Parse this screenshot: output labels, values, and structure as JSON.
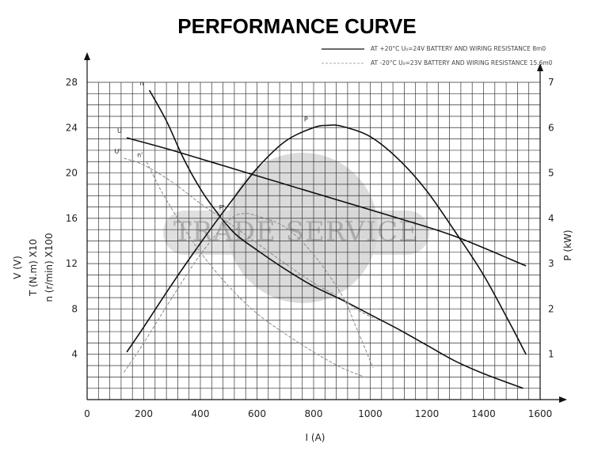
{
  "chart_data": {
    "type": "line",
    "title": "PERFORMANCE CURVE",
    "xlabel": "I  (A)",
    "ylabel_left": [
      "V  (V)",
      "T (N.m) X10",
      "n (r/min) X100"
    ],
    "ylabel_right": "P  (kW)",
    "xlim": [
      0,
      1600
    ],
    "ylim_left": [
      0,
      28
    ],
    "ylim_right": [
      0,
      7
    ],
    "x_ticks": [
      0,
      200,
      400,
      600,
      800,
      1000,
      1200,
      1400,
      1600
    ],
    "y_ticks_left": [
      4,
      8,
      12,
      16,
      20,
      24,
      28
    ],
    "y_ticks_right": [
      1,
      2,
      3,
      4,
      5,
      6,
      7
    ],
    "grid": true,
    "legend": [
      {
        "text": "AT +20°C  U₀=24V   BATTERY AND WIRING RESISTANCE 8m0",
        "style": "solid"
      },
      {
        "text": "AT -20°C  U₀=23V   BATTERY AND WIRING RESISTANCE 15.6m0",
        "style": "dashed"
      }
    ],
    "watermark": "TRADE SERVICE",
    "series": [
      {
        "name": "U",
        "style": "solid",
        "axis": "left",
        "points": [
          [
            140,
            23.1
          ],
          [
            300,
            22.0
          ],
          [
            500,
            20.5
          ],
          [
            700,
            19.0
          ],
          [
            900,
            17.5
          ],
          [
            1100,
            16.0
          ],
          [
            1300,
            14.4
          ],
          [
            1550,
            11.8
          ]
        ]
      },
      {
        "name": "n",
        "style": "solid",
        "axis": "left",
        "points": [
          [
            220,
            27.3
          ],
          [
            280,
            24.6
          ],
          [
            340,
            21.3
          ],
          [
            400,
            18.6
          ],
          [
            450,
            16.8
          ],
          [
            520,
            14.7
          ],
          [
            600,
            13.2
          ],
          [
            700,
            11.5
          ],
          [
            800,
            10.0
          ],
          [
            900,
            8.8
          ],
          [
            1000,
            7.5
          ],
          [
            1100,
            6.2
          ],
          [
            1200,
            4.8
          ],
          [
            1300,
            3.4
          ],
          [
            1400,
            2.3
          ],
          [
            1540,
            1.0
          ]
        ]
      },
      {
        "name": "P",
        "style": "solid",
        "axis": "right",
        "points": [
          [
            140,
            1.05
          ],
          [
            200,
            1.6
          ],
          [
            300,
            2.55
          ],
          [
            400,
            3.45
          ],
          [
            500,
            4.3
          ],
          [
            600,
            5.1
          ],
          [
            700,
            5.7
          ],
          [
            800,
            6.0
          ],
          [
            850,
            6.05
          ],
          [
            900,
            6.03
          ],
          [
            1000,
            5.8
          ],
          [
            1100,
            5.3
          ],
          [
            1200,
            4.6
          ],
          [
            1300,
            3.7
          ],
          [
            1400,
            2.75
          ],
          [
            1500,
            1.6
          ],
          [
            1550,
            1.0
          ]
        ]
      },
      {
        "name": "U'",
        "style": "dashed",
        "axis": "left",
        "points": [
          [
            130,
            21.3
          ],
          [
            200,
            20.7
          ],
          [
            300,
            19.2
          ],
          [
            400,
            17.3
          ],
          [
            500,
            15.6
          ],
          [
            600,
            13.8
          ],
          [
            700,
            12.0
          ],
          [
            800,
            10.3
          ],
          [
            900,
            8.9
          ],
          [
            950,
            8.0
          ],
          [
            1010,
            7.2
          ]
        ]
      },
      {
        "name": "n'",
        "style": "dashed",
        "axis": "left",
        "points": [
          [
            210,
            21.0
          ],
          [
            260,
            18.5
          ],
          [
            320,
            16.0
          ],
          [
            400,
            13.0
          ],
          [
            500,
            10.0
          ],
          [
            600,
            7.6
          ],
          [
            700,
            5.8
          ],
          [
            800,
            4.2
          ],
          [
            900,
            2.8
          ],
          [
            980,
            2.0
          ]
        ]
      },
      {
        "name": "P'",
        "style": "dashed",
        "axis": "right",
        "points": [
          [
            130,
            0.6
          ],
          [
            200,
            1.25
          ],
          [
            300,
            2.25
          ],
          [
            400,
            3.2
          ],
          [
            500,
            3.95
          ],
          [
            550,
            4.1
          ],
          [
            600,
            4.05
          ],
          [
            700,
            3.8
          ],
          [
            800,
            3.2
          ],
          [
            900,
            2.3
          ],
          [
            950,
            1.6
          ],
          [
            1010,
            0.7
          ]
        ]
      }
    ]
  }
}
